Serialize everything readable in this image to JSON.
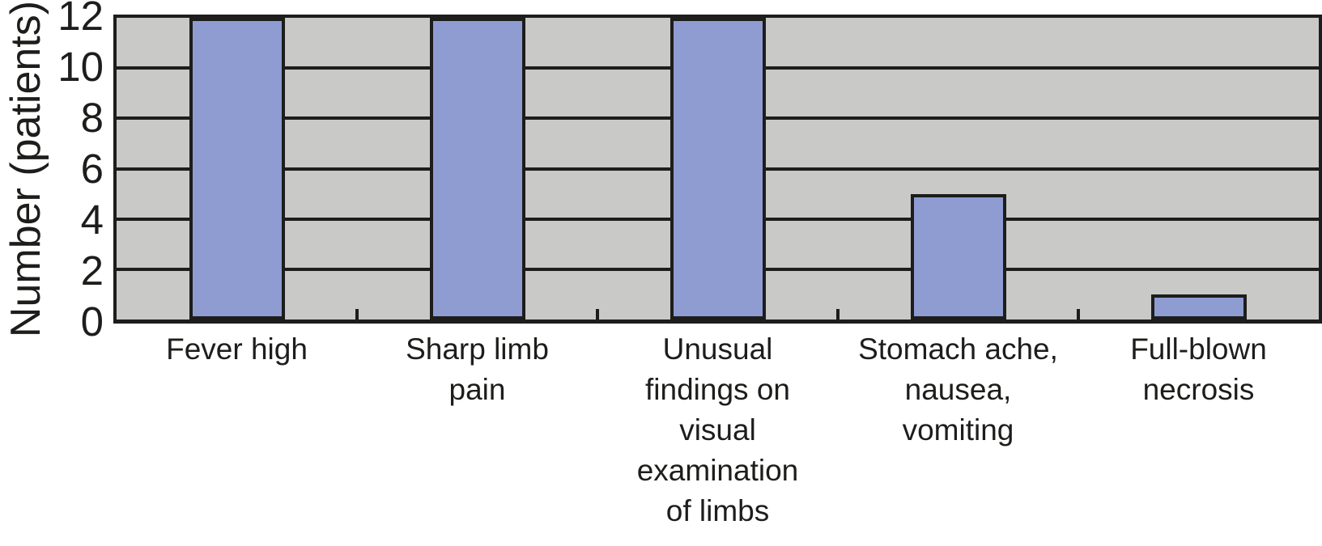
{
  "chart_data": {
    "type": "bar",
    "title": "",
    "categories": [
      "Fever high",
      "Sharp limb\npain",
      "Unusual\nfindings on\nvisual\nexamination\nof limbs",
      "Stomach ache,\nnausea,\nvomiting",
      "Full-blown\nnecrosis"
    ],
    "values": [
      12,
      12,
      12,
      5,
      1
    ],
    "xlabel": "",
    "ylabel": "Number (patients)",
    "ylim": [
      0,
      12
    ],
    "yticks": [
      0,
      2,
      4,
      6,
      8,
      10,
      12
    ],
    "grid": true,
    "legend_position": "none",
    "colors": {
      "bar_fill": "#8e9cd2",
      "plot_background": "#c9cac8",
      "line_and_text": "#1d1d1b",
      "page_background": "#ffffff"
    }
  }
}
